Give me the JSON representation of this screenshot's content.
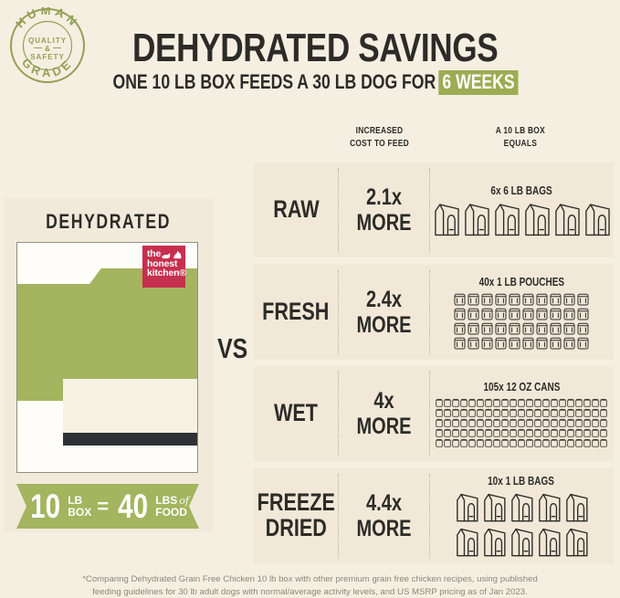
{
  "badge": {
    "arc_top": "HUMAN",
    "arc_bottom": "GRADE",
    "center_line1": "QUALITY",
    "center_line2": "&",
    "center_line3": "SAFETY"
  },
  "header": {
    "title": "DEHYDRATED SAVINGS",
    "subtitle_prefix": "ONE 10 LB BOX FEEDS A 30 LB DOG FOR",
    "subtitle_highlight": "6 WEEKS"
  },
  "left_panel": {
    "heading": "DEHYDRATED",
    "brand_logo": {
      "line1": "the",
      "line2": "honest",
      "line3": "kitchen®"
    },
    "ribbon": {
      "num1": "10",
      "unit1_top": "LB",
      "unit1_bottom": "BOX",
      "equals": "=",
      "num2": "40",
      "unit2_top": "LBS",
      "unit2_of": "of",
      "unit2_bottom": "FOOD"
    }
  },
  "vs_label": "VS",
  "comparison": {
    "col_header_cost": "INCREASED\nCOST TO FEED",
    "col_header_equals": "A 10 LB BOX\nEQUALS",
    "rows": [
      {
        "name": "RAW",
        "cost_line1": "2.1x",
        "cost_line2": "MORE",
        "equals_label": "6x 6 LB BAGS",
        "icon": "bag-large",
        "icon_count": 6
      },
      {
        "name": "FRESH",
        "cost_line1": "2.4x",
        "cost_line2": "MORE",
        "equals_label": "40x 1 LB POUCHES",
        "icon": "pouch",
        "icon_count": 40
      },
      {
        "name": "WET",
        "cost_line1": "4x",
        "cost_line2": "MORE",
        "equals_label": "105x 12 OZ CANS",
        "icon": "can",
        "icon_count": 105
      },
      {
        "name": "FREEZE\nDRIED",
        "cost_line1": "4.4x",
        "cost_line2": "MORE",
        "equals_label": "10x 1 LB BAGS",
        "icon": "bag-small",
        "icon_count": 10
      }
    ]
  },
  "footnote_line1": "*Comparing Dehydrated Grain Free Chicken 10 lb box with other premium grain free chicken recipes, using published",
  "footnote_line2": "feeding guidelines for 30 lb adult dogs with normal/average activity levels, and US MSRP pricing as of Jan 2023.",
  "colors": {
    "page_bg": "#f5efe2",
    "panel_bg": "#f1eadb",
    "row_bg": "#f1e8d8",
    "olive_green": "#a4b45f",
    "highlight_green": "#9dac52",
    "badge_green": "#93a054",
    "brand_red": "#c72f4e",
    "ink": "#2c2b27",
    "dark_bar": "#2e3136",
    "footnote_gray": "#8c8779"
  },
  "chart_data": {
    "type": "table",
    "title": "DEHYDRATED SAVINGS",
    "subtitle": "ONE 10 LB BOX FEEDS A 30 LB DOG FOR 6 WEEKS",
    "baseline_product": "DEHYDRATED: 10 lb box = 40 lbs of food",
    "columns": [
      "Food type",
      "Increased cost to feed",
      "A 10 lb box equals"
    ],
    "rows": [
      [
        "RAW",
        "2.1x more",
        "6x 6 lb bags"
      ],
      [
        "FRESH",
        "2.4x more",
        "40x 1 lb pouches"
      ],
      [
        "WET",
        "4x more",
        "105x 12 oz cans"
      ],
      [
        "FREEZE DRIED",
        "4.4x more",
        "10x 1 lb bags"
      ]
    ],
    "cost_multipliers": [
      2.1,
      2.4,
      4.0,
      4.4
    ],
    "equivalent_unit_counts": [
      6,
      40,
      105,
      10
    ]
  }
}
